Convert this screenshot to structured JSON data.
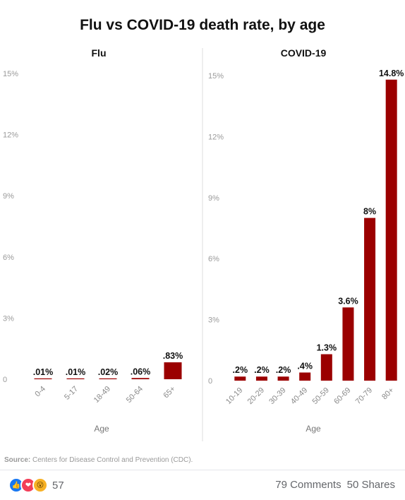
{
  "chart_data": {
    "type": "bar",
    "title": "Flu vs COVID-19 death rate, by age",
    "source_label": "Source:",
    "source_text": "Centers for Disease Control and Prevention (CDC).",
    "bar_color": "#9b0000",
    "ytick_color": "#9a9a9a",
    "panels": [
      {
        "title": "Flu",
        "xlabel": "Age",
        "ylim": [
          0,
          15
        ],
        "yticks": [
          0,
          3,
          6,
          9,
          12,
          15
        ],
        "ytick_labels": [
          "0",
          "3%",
          "6%",
          "9%",
          "12%",
          "15%"
        ],
        "categories": [
          "0-4",
          "5-17",
          "18-49",
          "50-64",
          "65+"
        ],
        "values": [
          0.01,
          0.01,
          0.02,
          0.06,
          0.83
        ],
        "data_labels": [
          ".01%",
          ".01%",
          ".02%",
          ".06%",
          ".83%"
        ]
      },
      {
        "title": "COVID-19",
        "xlabel": "Age",
        "ylim": [
          0,
          15
        ],
        "yticks": [
          0,
          3,
          6,
          9,
          12,
          15
        ],
        "ytick_labels": [
          "0",
          "3%",
          "6%",
          "9%",
          "12%",
          "15%"
        ],
        "categories": [
          "10-19",
          "20-29",
          "30-39",
          "40-49",
          "50-59",
          "60-69",
          "70-79",
          "80+"
        ],
        "values": [
          0.2,
          0.2,
          0.2,
          0.4,
          1.3,
          3.6,
          8,
          14.8
        ],
        "data_labels": [
          ".2%",
          ".2%",
          ".2%",
          ".4%",
          "1.3%",
          "3.6%",
          "8%",
          "14.8%"
        ]
      }
    ]
  },
  "footer": {
    "reactions": [
      {
        "name": "like",
        "icon": "thumbs-up-icon"
      },
      {
        "name": "love",
        "icon": "heart-icon"
      },
      {
        "name": "wow",
        "icon": "wow-face-icon"
      }
    ],
    "reaction_count": "57",
    "comments": "79 Comments",
    "shares": "50 Shares"
  }
}
